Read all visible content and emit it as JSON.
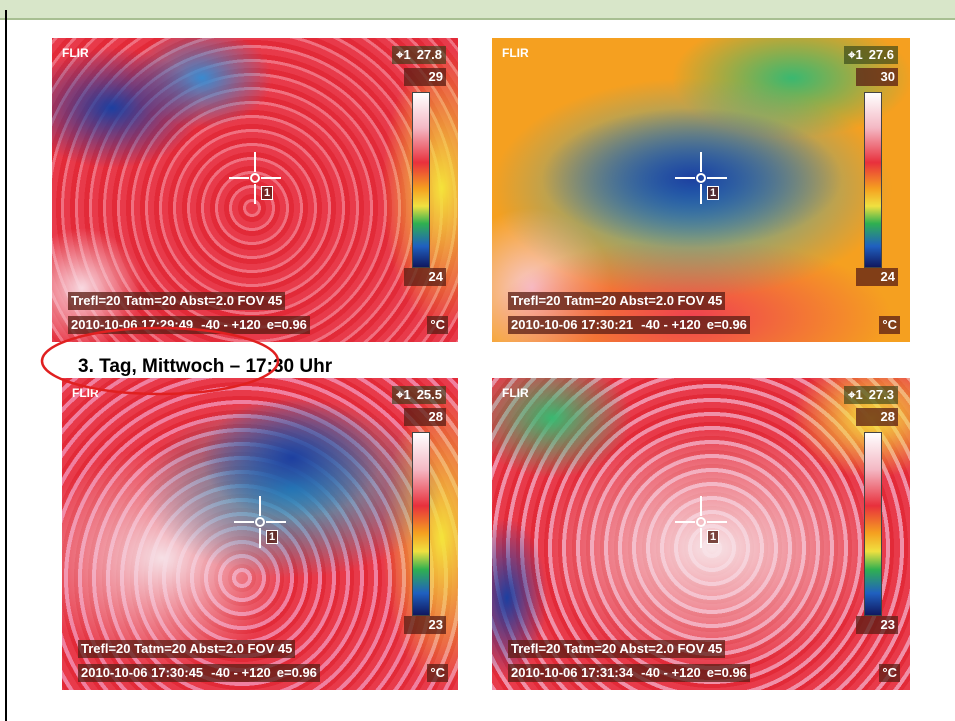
{
  "caption": "3. Tag, Mittwoch – 17:30 Uhr",
  "images": [
    {
      "logo": "FLIR",
      "spot_label": "1",
      "spot_value": "27.8",
      "scale_max": "29",
      "scale_min": "24",
      "params": "Trefl=20 Tatm=20 Abst=2.0 FOV 45",
      "timestamp": "2010-10-06 17:29:49",
      "range": "-40 - +120",
      "emissivity": "e=0.96",
      "unit": "°C",
      "marker": "1"
    },
    {
      "logo": "FLIR",
      "spot_label": "1",
      "spot_value": "27.6",
      "scale_max": "30",
      "scale_min": "24",
      "params": "Trefl=20 Tatm=20 Abst=2.0 FOV 45",
      "timestamp": "2010-10-06 17:30:21",
      "range": "-40 - +120",
      "emissivity": "e=0.96",
      "unit": "°C",
      "marker": "1"
    },
    {
      "logo": "FLIR",
      "spot_label": "1",
      "spot_value": "25.5",
      "scale_max": "28",
      "scale_min": "23",
      "params": "Trefl=20 Tatm=20 Abst=2.0 FOV 45",
      "timestamp": "2010-10-06 17:30:45",
      "range": "-40 - +120",
      "emissivity": "e=0.96",
      "unit": "°C",
      "marker": "1"
    },
    {
      "logo": "FLIR",
      "spot_label": "1",
      "spot_value": "27.3",
      "scale_max": "28",
      "scale_min": "23",
      "params": "Trefl=20 Tatm=20 Abst=2.0 FOV 45",
      "timestamp": "2010-10-06 17:31:34",
      "range": "-40 - +120",
      "emissivity": "e=0.96",
      "unit": "°C",
      "marker": "1"
    }
  ]
}
